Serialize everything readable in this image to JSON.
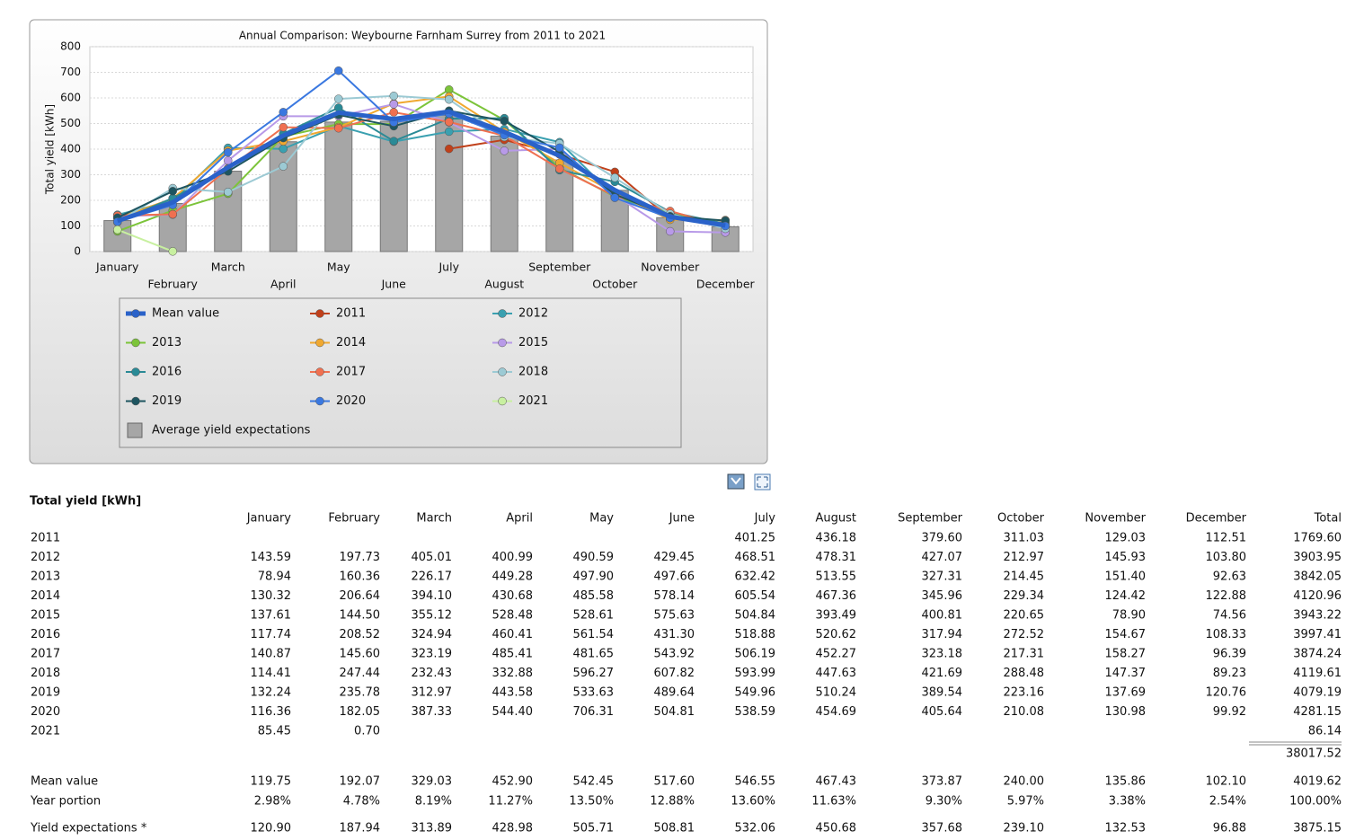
{
  "chart_data": {
    "type": "line",
    "title": "Annual Comparison: Weybourne Farnham Surrey from 2011 to 2021",
    "y_label": "Total yield [kWh]",
    "categories": [
      "January",
      "February",
      "March",
      "April",
      "May",
      "June",
      "July",
      "August",
      "September",
      "October",
      "November",
      "December"
    ],
    "ylim": [
      0,
      800
    ],
    "yticks": [
      0,
      100,
      200,
      300,
      400,
      500,
      600,
      700,
      800
    ],
    "grid": true,
    "series": [
      {
        "name": "Mean value",
        "color": "#2a62c9",
        "values": [
          119.75,
          192.07,
          329.03,
          452.9,
          542.45,
          517.6,
          546.55,
          467.43,
          373.87,
          240.0,
          135.86,
          102.1
        ]
      },
      {
        "name": "2011",
        "color": "#c0401a",
        "values": [
          null,
          null,
          null,
          null,
          null,
          null,
          401.25,
          436.18,
          379.6,
          311.03,
          129.03,
          112.51
        ]
      },
      {
        "name": "2012",
        "color": "#3aa0b0",
        "values": [
          143.59,
          197.73,
          405.01,
          400.99,
          490.59,
          429.45,
          468.51,
          478.31,
          427.07,
          212.97,
          145.93,
          103.8
        ]
      },
      {
        "name": "2013",
        "color": "#7cc43a",
        "values": [
          78.94,
          160.36,
          226.17,
          449.28,
          497.9,
          497.66,
          632.42,
          513.55,
          327.31,
          214.45,
          151.4,
          92.63
        ]
      },
      {
        "name": "2014",
        "color": "#f0a830",
        "values": [
          130.32,
          206.64,
          394.1,
          430.68,
          485.58,
          578.14,
          605.54,
          467.36,
          345.96,
          229.34,
          124.42,
          122.88
        ]
      },
      {
        "name": "2015",
        "color": "#b89ae8",
        "values": [
          137.61,
          144.5,
          355.12,
          528.48,
          528.61,
          575.63,
          504.84,
          393.49,
          400.81,
          220.65,
          78.9,
          74.56
        ]
      },
      {
        "name": "2016",
        "color": "#2a8a96",
        "values": [
          117.74,
          208.52,
          324.94,
          460.41,
          561.54,
          431.3,
          518.88,
          520.62,
          317.94,
          272.52,
          154.67,
          108.33
        ]
      },
      {
        "name": "2017",
        "color": "#f07050",
        "values": [
          140.87,
          145.6,
          323.19,
          485.41,
          481.65,
          543.92,
          506.19,
          452.27,
          323.18,
          217.31,
          158.27,
          96.39
        ]
      },
      {
        "name": "2018",
        "color": "#9ccad4",
        "values": [
          114.41,
          247.44,
          232.43,
          332.88,
          596.27,
          607.82,
          593.99,
          447.63,
          421.69,
          288.48,
          147.37,
          89.23
        ]
      },
      {
        "name": "2019",
        "color": "#1e5560",
        "values": [
          132.24,
          235.78,
          312.97,
          443.58,
          533.63,
          489.64,
          549.96,
          510.24,
          389.54,
          223.16,
          137.69,
          120.76
        ]
      },
      {
        "name": "2020",
        "color": "#3a78e0",
        "values": [
          116.36,
          182.05,
          387.33,
          544.4,
          706.31,
          504.81,
          538.59,
          454.69,
          405.64,
          210.08,
          130.98,
          99.92
        ]
      },
      {
        "name": "2021",
        "color": "#c8f0a0",
        "values": [
          85.45,
          0.7,
          null,
          null,
          null,
          null,
          null,
          null,
          null,
          null,
          null,
          null
        ]
      },
      {
        "name": "Average yield expectations",
        "type": "bar",
        "color": "#a6a6a6",
        "values": [
          120.9,
          187.94,
          313.89,
          428.98,
          505.71,
          508.81,
          532.06,
          450.68,
          357.68,
          239.1,
          132.53,
          96.88
        ]
      }
    ]
  },
  "table": {
    "title": "Total yield [kWh]",
    "total_header": "Total",
    "rows": [
      {
        "label": "2011",
        "cells": [
          null,
          null,
          null,
          null,
          null,
          null,
          "401.25",
          "436.18",
          "379.60",
          "311.03",
          "129.03",
          "112.51"
        ],
        "total": "1769.60"
      },
      {
        "label": "2012",
        "cells": [
          "143.59",
          "197.73",
          "405.01",
          "400.99",
          "490.59",
          "429.45",
          "468.51",
          "478.31",
          "427.07",
          "212.97",
          "145.93",
          "103.80"
        ],
        "total": "3903.95"
      },
      {
        "label": "2013",
        "cells": [
          "78.94",
          "160.36",
          "226.17",
          "449.28",
          "497.90",
          "497.66",
          "632.42",
          "513.55",
          "327.31",
          "214.45",
          "151.40",
          "92.63"
        ],
        "total": "3842.05"
      },
      {
        "label": "2014",
        "cells": [
          "130.32",
          "206.64",
          "394.10",
          "430.68",
          "485.58",
          "578.14",
          "605.54",
          "467.36",
          "345.96",
          "229.34",
          "124.42",
          "122.88"
        ],
        "total": "4120.96"
      },
      {
        "label": "2015",
        "cells": [
          "137.61",
          "144.50",
          "355.12",
          "528.48",
          "528.61",
          "575.63",
          "504.84",
          "393.49",
          "400.81",
          "220.65",
          "78.90",
          "74.56"
        ],
        "total": "3943.22"
      },
      {
        "label": "2016",
        "cells": [
          "117.74",
          "208.52",
          "324.94",
          "460.41",
          "561.54",
          "431.30",
          "518.88",
          "520.62",
          "317.94",
          "272.52",
          "154.67",
          "108.33"
        ],
        "total": "3997.41"
      },
      {
        "label": "2017",
        "cells": [
          "140.87",
          "145.60",
          "323.19",
          "485.41",
          "481.65",
          "543.92",
          "506.19",
          "452.27",
          "323.18",
          "217.31",
          "158.27",
          "96.39"
        ],
        "total": "3874.24"
      },
      {
        "label": "2018",
        "cells": [
          "114.41",
          "247.44",
          "232.43",
          "332.88",
          "596.27",
          "607.82",
          "593.99",
          "447.63",
          "421.69",
          "288.48",
          "147.37",
          "89.23"
        ],
        "total": "4119.61"
      },
      {
        "label": "2019",
        "cells": [
          "132.24",
          "235.78",
          "312.97",
          "443.58",
          "533.63",
          "489.64",
          "549.96",
          "510.24",
          "389.54",
          "223.16",
          "137.69",
          "120.76"
        ],
        "total": "4079.19"
      },
      {
        "label": "2020",
        "cells": [
          "116.36",
          "182.05",
          "387.33",
          "544.40",
          "706.31",
          "504.81",
          "538.59",
          "454.69",
          "405.64",
          "210.08",
          "130.98",
          "99.92"
        ],
        "total": "4281.15"
      },
      {
        "label": "2021",
        "cells": [
          "85.45",
          "0.70",
          null,
          null,
          null,
          null,
          null,
          null,
          null,
          null,
          null,
          null
        ],
        "total": "86.14"
      }
    ],
    "grand_total": "38017.52",
    "summary": [
      {
        "label": "Mean value",
        "cells": [
          "119.75",
          "192.07",
          "329.03",
          "452.90",
          "542.45",
          "517.60",
          "546.55",
          "467.43",
          "373.87",
          "240.00",
          "135.86",
          "102.10"
        ],
        "total": "4019.62"
      },
      {
        "label": "Year portion",
        "cells": [
          "2.98%",
          "4.78%",
          "8.19%",
          "11.27%",
          "13.50%",
          "12.88%",
          "13.60%",
          "11.63%",
          "9.30%",
          "5.97%",
          "3.38%",
          "2.54%"
        ],
        "total": "100.00%"
      },
      {
        "label": "Yield expectations *",
        "cells": [
          "120.90",
          "187.94",
          "313.89",
          "428.98",
          "505.71",
          "508.81",
          "532.06",
          "450.68",
          "357.68",
          "239.10",
          "132.53",
          "96.88"
        ],
        "total": "3875.15"
      }
    ]
  }
}
